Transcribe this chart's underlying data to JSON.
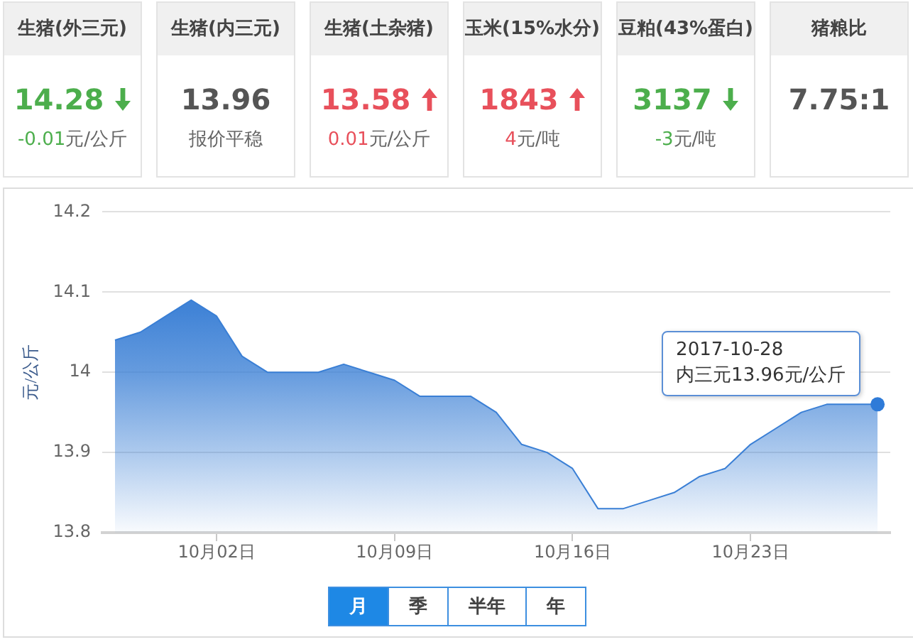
{
  "chart_data": [
    {
      "type": "other",
      "title": "生猪(外三元)",
      "annotations": [
        "14.28",
        "-0.01元/公斤"
      ],
      "color": "#4cae4c"
    },
    {
      "type": "other",
      "title": "生猪(内三元)",
      "annotations": [
        "13.96",
        "报价平稳"
      ],
      "color": "#555555"
    },
    {
      "type": "other",
      "title": "生猪(土杂猪)",
      "annotations": [
        "13.58",
        "0.01元/公斤"
      ],
      "color": "#e8505b"
    },
    {
      "type": "other",
      "title": "玉米(15%水分)",
      "annotations": [
        "1843",
        "4元/吨"
      ],
      "color": "#e8505b"
    },
    {
      "type": "other",
      "title": "豆粕(43%蛋白)",
      "annotations": [
        "3137",
        "-3元/吨"
      ],
      "color": "#4cae4c"
    },
    {
      "type": "other",
      "title": "猪粮比",
      "annotations": [
        "7.75:1"
      ],
      "color": "#555555"
    },
    {
      "type": "area",
      "x": [
        "2017-09-28",
        "2017-09-29",
        "2017-09-30",
        "2017-10-01",
        "2017-10-02",
        "2017-10-03",
        "2017-10-04",
        "2017-10-05",
        "2017-10-06",
        "2017-10-07",
        "2017-10-08",
        "2017-10-09",
        "2017-10-10",
        "2017-10-11",
        "2017-10-12",
        "2017-10-13",
        "2017-10-14",
        "2017-10-15",
        "2017-10-16",
        "2017-10-17",
        "2017-10-18",
        "2017-10-19",
        "2017-10-20",
        "2017-10-21",
        "2017-10-22",
        "2017-10-23",
        "2017-10-24",
        "2017-10-25",
        "2017-10-26",
        "2017-10-27",
        "2017-10-28"
      ],
      "series": [
        {
          "type": "area",
          "color": "#3a7fd5",
          "values": [
            14.04,
            14.05,
            14.07,
            14.09,
            14.07,
            14.02,
            14.0,
            14.0,
            14.0,
            14.01,
            14.0,
            13.99,
            13.97,
            13.97,
            13.97,
            13.95,
            13.91,
            13.9,
            13.88,
            13.83,
            13.83,
            13.84,
            13.85,
            13.87,
            13.88,
            13.91,
            13.93,
            13.95,
            13.96,
            13.96,
            13.96
          ]
        },
        {
          "type": "scatter",
          "x": [
            "2017-10-28"
          ],
          "values": [
            13.96
          ],
          "color": "#2f7bd8",
          "marker": "circle"
        }
      ],
      "xlim": [
        "2017-09-27T12:00",
        "2017-10-28T12:00"
      ],
      "xticks": [
        {
          "value": "2017-10-02",
          "label": "10月02日"
        },
        {
          "value": "2017-10-09",
          "label": "10月09日"
        },
        {
          "value": "2017-10-16",
          "label": "10月16日"
        },
        {
          "value": "2017-10-23",
          "label": "10月23日"
        }
      ],
      "ylim": [
        13.8,
        14.2
      ],
      "yticks": [
        13.8,
        13.9,
        14,
        14.1,
        14.2
      ],
      "ylabel": "元/公斤",
      "grid": "y",
      "annotations": [
        {
          "text": "2017-10-28\n内三元13.96元/公斤",
          "x": "2017-10-28",
          "y": 13.96
        },
        "月",
        "季",
        "半年",
        "年"
      ]
    }
  ]
}
